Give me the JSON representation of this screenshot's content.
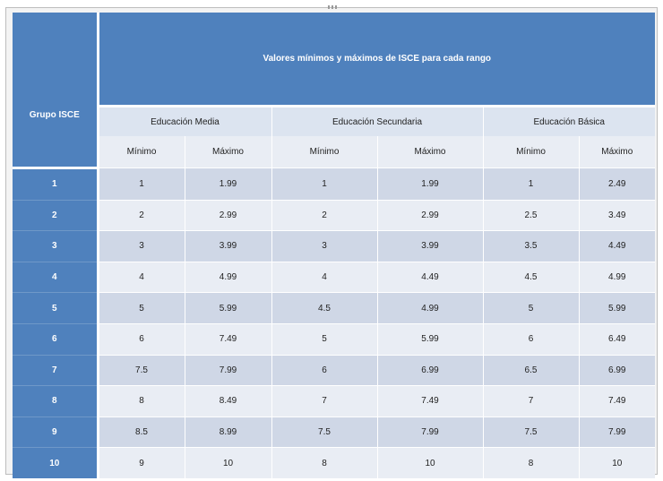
{
  "table": {
    "title": "Valores mínimos y máximos de ISCE para cada rango",
    "group_header": "Grupo  ISCE",
    "levels": [
      "Educación Media",
      "Educación Secundaria",
      "Educación Básica"
    ],
    "min_label": "Mínimo",
    "max_label": "Máximo",
    "rows": [
      {
        "grupo": "1",
        "values": [
          "1",
          "1.99",
          "1",
          "1.99",
          "1",
          "2.49"
        ]
      },
      {
        "grupo": "2",
        "values": [
          "2",
          "2.99",
          "2",
          "2.99",
          "2.5",
          "3.49"
        ]
      },
      {
        "grupo": "3",
        "values": [
          "3",
          "3.99",
          "3",
          "3.99",
          "3.5",
          "4.49"
        ]
      },
      {
        "grupo": "4",
        "values": [
          "4",
          "4.99",
          "4",
          "4.49",
          "4.5",
          "4.99"
        ]
      },
      {
        "grupo": "5",
        "values": [
          "5",
          "5.99",
          "4.5",
          "4.99",
          "5",
          "5.99"
        ]
      },
      {
        "grupo": "6",
        "values": [
          "6",
          "7.49",
          "5",
          "5.99",
          "6",
          "6.49"
        ]
      },
      {
        "grupo": "7",
        "values": [
          "7.5",
          "7.99",
          "6",
          "6.99",
          "6.5",
          "6.99"
        ]
      },
      {
        "grupo": "8",
        "values": [
          "8",
          "8.49",
          "7",
          "7.49",
          "7",
          "7.49"
        ]
      },
      {
        "grupo": "9",
        "values": [
          "8.5",
          "8.99",
          "7.5",
          "7.99",
          "7.5",
          "7.99"
        ]
      },
      {
        "grupo": "10",
        "values": [
          "9",
          "10",
          "8",
          "10",
          "8",
          "10"
        ]
      }
    ]
  },
  "colors": {
    "header_blue": "#4f81bd",
    "row_band_dark": "#cfd7e6",
    "row_band_light": "#e9edf4"
  }
}
